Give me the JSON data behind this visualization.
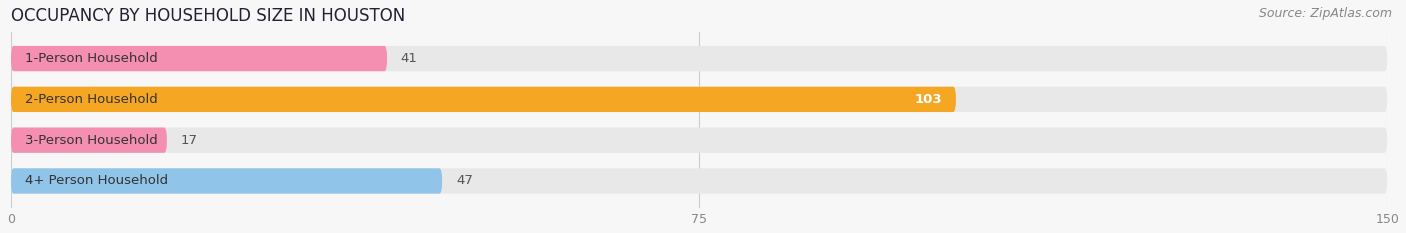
{
  "title": "OCCUPANCY BY HOUSEHOLD SIZE IN HOUSTON",
  "source": "Source: ZipAtlas.com",
  "categories": [
    "1-Person Household",
    "2-Person Household",
    "3-Person Household",
    "4+ Person Household"
  ],
  "values": [
    41,
    103,
    17,
    47
  ],
  "bar_colors": [
    "#f48fb1",
    "#f5a623",
    "#f48fb1",
    "#90c4e8"
  ],
  "bg_bar_color": "#e8e8e8",
  "label_colors": [
    "#555555",
    "#ffffff",
    "#555555",
    "#555555"
  ],
  "xlim": [
    0,
    150
  ],
  "xticks": [
    0,
    75,
    150
  ],
  "title_fontsize": 12,
  "source_fontsize": 9,
  "label_fontsize": 9.5,
  "value_fontsize": 9.5,
  "bar_height": 0.62,
  "background_color": "#f7f7f7",
  "title_color": "#222233",
  "tick_color": "#888888"
}
